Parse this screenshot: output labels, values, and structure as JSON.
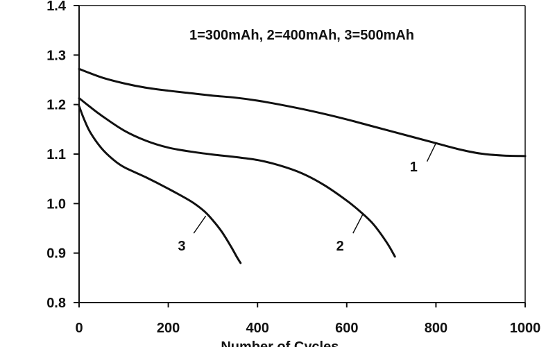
{
  "chart_data": {
    "type": "line",
    "annotation": "1=300mAh, 2=400mAh, 3=500mAh",
    "xlabel": "Number of Cycles",
    "ylabel": "",
    "xlim": [
      0,
      1000
    ],
    "ylim": [
      0.8,
      1.4
    ],
    "x_ticks": [
      0,
      200,
      400,
      600,
      800,
      1000
    ],
    "x_tick_labels": [
      "0",
      "200",
      "400",
      "600",
      "800",
      "1000"
    ],
    "y_ticks": [
      0.8,
      0.9,
      1.0,
      1.1,
      1.2,
      1.3,
      1.4
    ],
    "y_tick_labels": [
      "0.8",
      "0.9",
      "1.0",
      "1.1",
      "1.2",
      "1.3",
      "1.4"
    ],
    "grid": false,
    "legend": "none",
    "line_color": "#111111",
    "series": [
      {
        "name": "1",
        "label_at": [
          750,
          1.065
        ],
        "label_leader": [
          [
            780,
            1.085
          ],
          [
            800,
            1.122
          ]
        ],
        "points": [
          [
            0,
            1.272
          ],
          [
            50,
            1.255
          ],
          [
            100,
            1.243
          ],
          [
            150,
            1.234
          ],
          [
            200,
            1.228
          ],
          [
            250,
            1.223
          ],
          [
            300,
            1.218
          ],
          [
            350,
            1.214
          ],
          [
            400,
            1.208
          ],
          [
            450,
            1.2
          ],
          [
            500,
            1.191
          ],
          [
            550,
            1.181
          ],
          [
            600,
            1.17
          ],
          [
            650,
            1.158
          ],
          [
            700,
            1.146
          ],
          [
            750,
            1.134
          ],
          [
            800,
            1.122
          ],
          [
            850,
            1.11
          ],
          [
            900,
            1.101
          ],
          [
            950,
            1.097
          ],
          [
            1000,
            1.096
          ]
        ]
      },
      {
        "name": "2",
        "label_at": [
          585,
          0.905
        ],
        "label_leader": [
          [
            614,
            0.94
          ],
          [
            637,
            0.98
          ]
        ],
        "points": [
          [
            0,
            1.213
          ],
          [
            25,
            1.195
          ],
          [
            50,
            1.178
          ],
          [
            100,
            1.148
          ],
          [
            150,
            1.127
          ],
          [
            200,
            1.113
          ],
          [
            250,
            1.105
          ],
          [
            300,
            1.099
          ],
          [
            350,
            1.094
          ],
          [
            400,
            1.088
          ],
          [
            450,
            1.077
          ],
          [
            500,
            1.061
          ],
          [
            550,
            1.037
          ],
          [
            600,
            1.006
          ],
          [
            630,
            0.984
          ],
          [
            660,
            0.958
          ],
          [
            690,
            0.921
          ],
          [
            708,
            0.893
          ]
        ]
      },
      {
        "name": "3",
        "label_at": [
          230,
          0.905
        ],
        "label_leader": [
          [
            257,
            0.94
          ],
          [
            284,
            0.975
          ]
        ],
        "points": [
          [
            0,
            1.197
          ],
          [
            10,
            1.173
          ],
          [
            25,
            1.144
          ],
          [
            50,
            1.112
          ],
          [
            75,
            1.09
          ],
          [
            100,
            1.074
          ],
          [
            150,
            1.053
          ],
          [
            200,
            1.03
          ],
          [
            250,
            1.005
          ],
          [
            280,
            0.985
          ],
          [
            300,
            0.966
          ],
          [
            320,
            0.943
          ],
          [
            340,
            0.914
          ],
          [
            355,
            0.89
          ],
          [
            362,
            0.88
          ]
        ]
      }
    ]
  }
}
